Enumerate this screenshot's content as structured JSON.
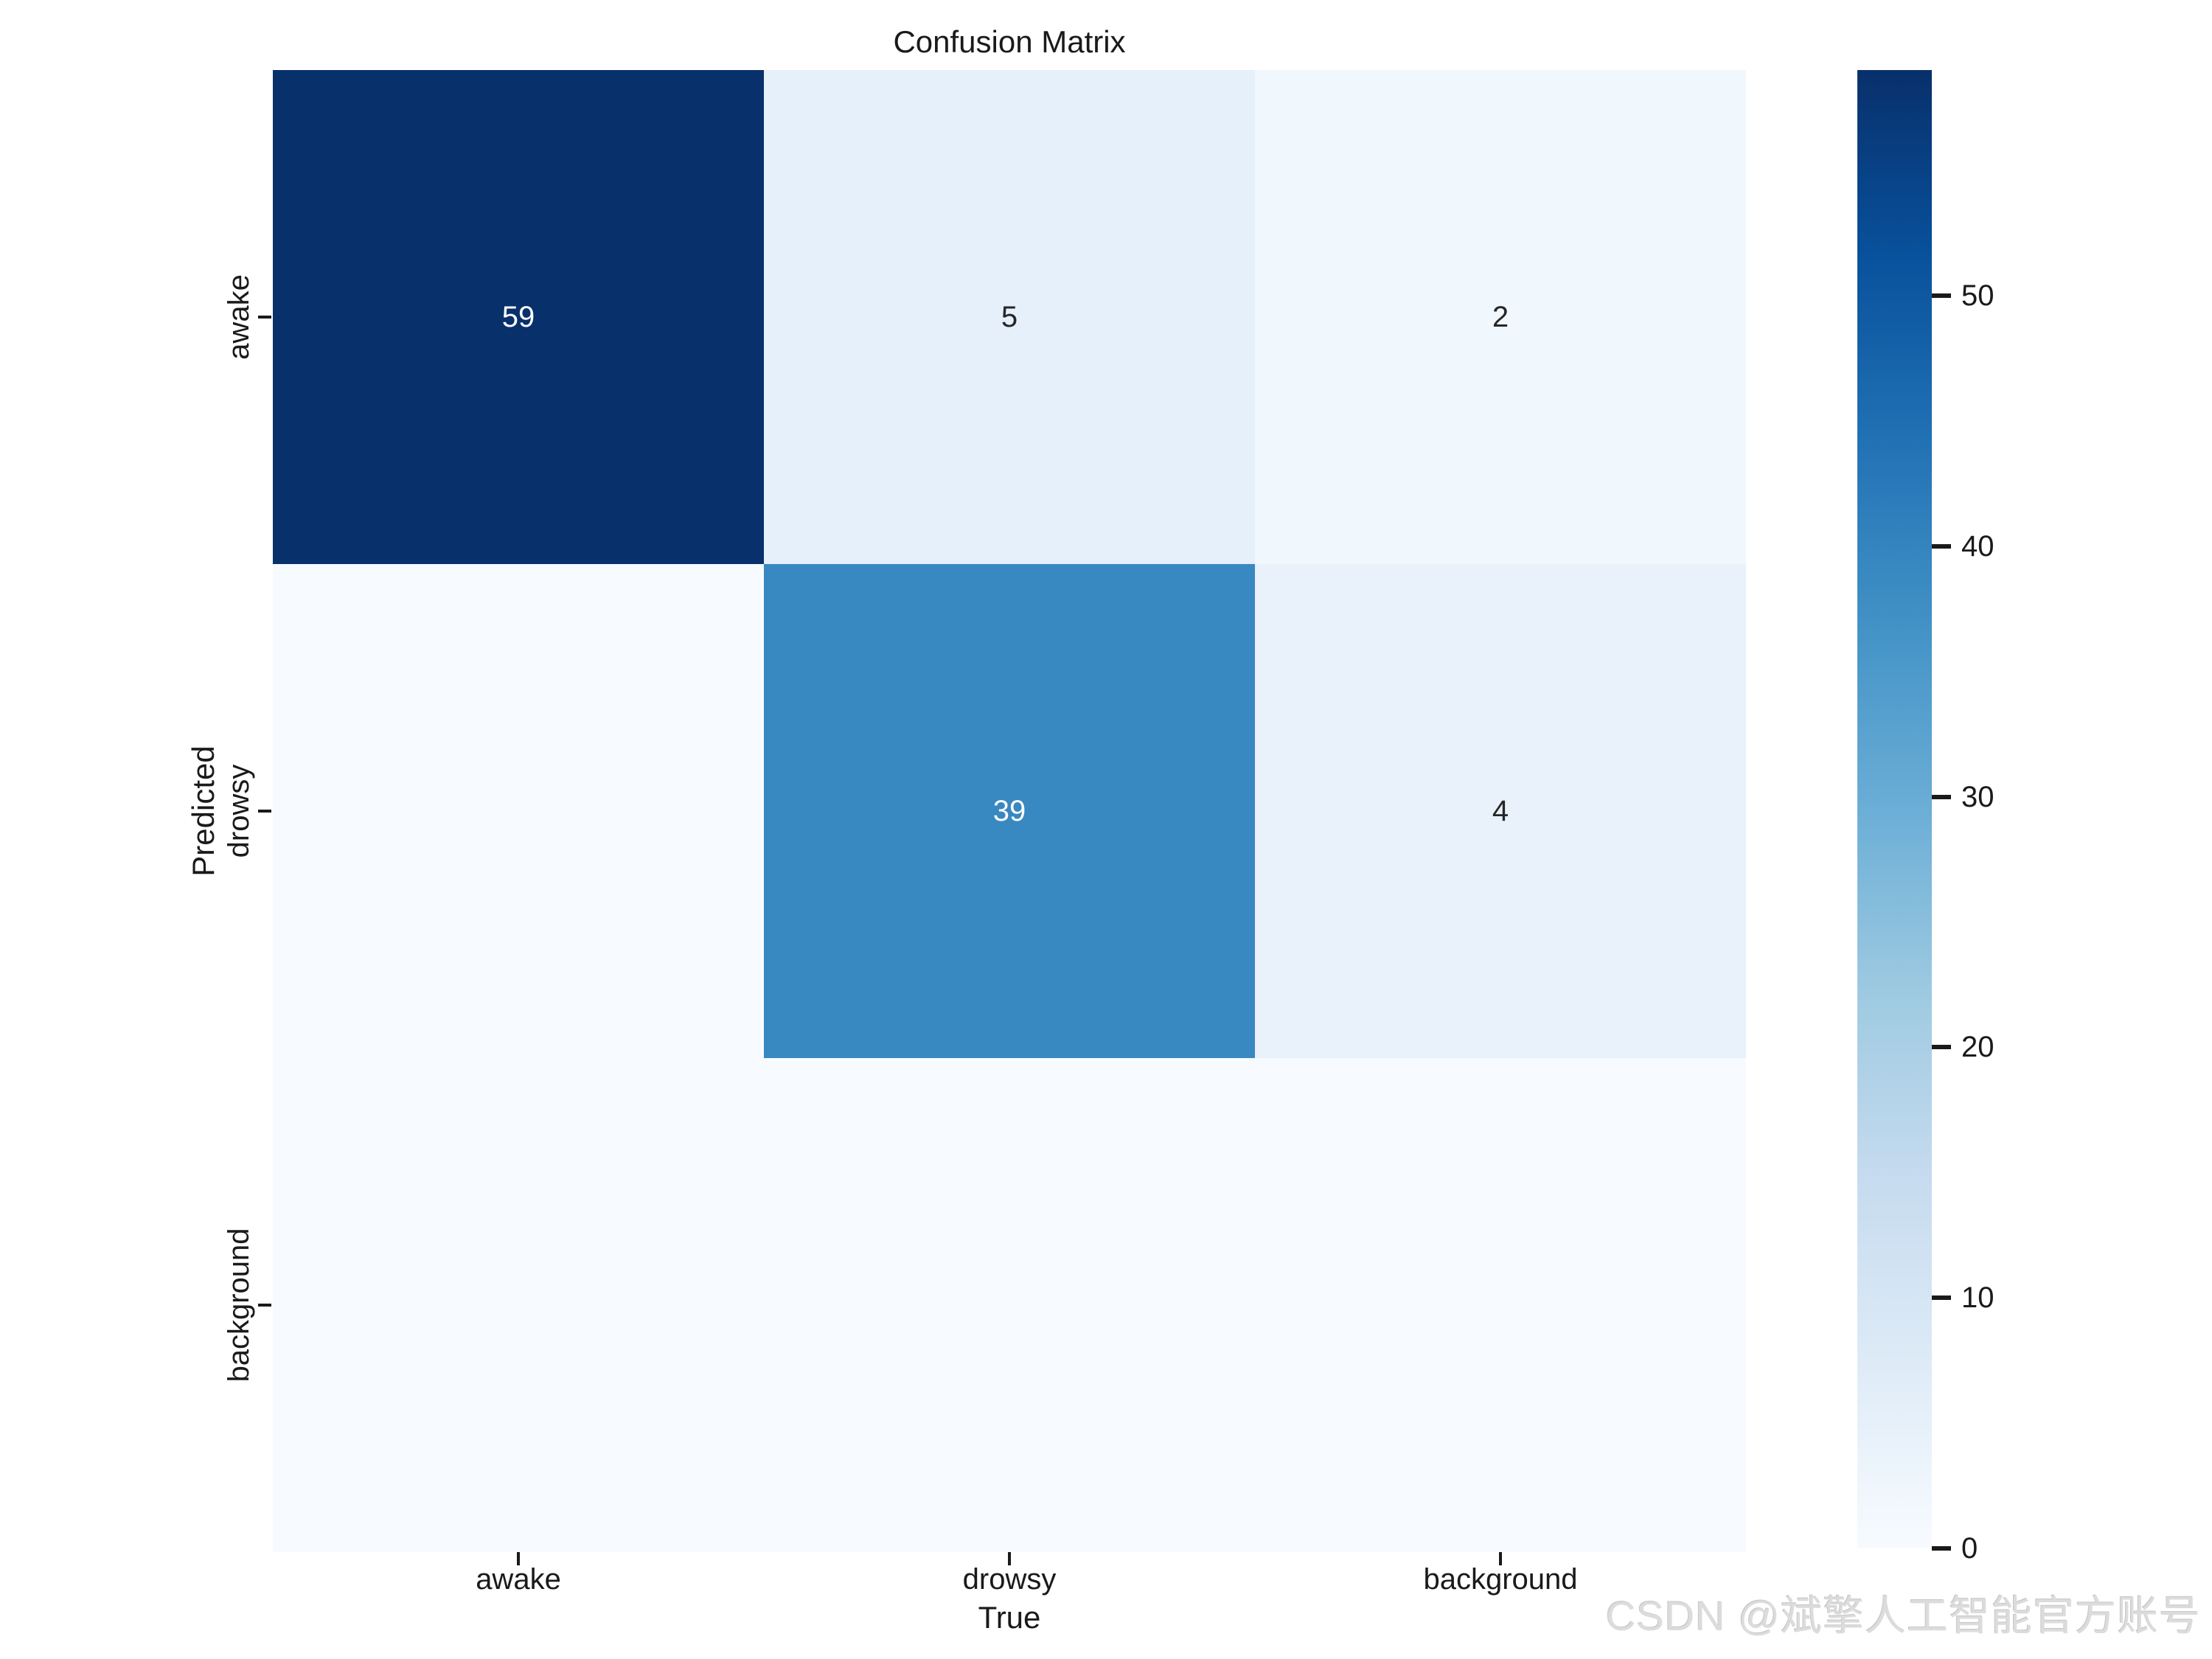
{
  "title": "Confusion Matrix",
  "axes": {
    "x_label": "True",
    "y_label": "Predicted",
    "x_tick_labels": [
      "awake",
      "drowsy",
      "background"
    ],
    "y_tick_labels": [
      "awake",
      "drowsy",
      "background"
    ]
  },
  "colorbar": {
    "tick_values": [
      0,
      10,
      20,
      30,
      40,
      50
    ],
    "vmin": 0,
    "vmax": 59,
    "gradient_bottom_to_top": [
      "#f7fbff",
      "#deebf7",
      "#c6dbef",
      "#9ecae1",
      "#6baed6",
      "#4292c6",
      "#2171b5",
      "#08519c",
      "#08306b"
    ]
  },
  "watermark": "CSDN @斌擎人工智能官方账号",
  "colors": {
    "background": "#ffffff",
    "tick_color": "#1a1a1a",
    "annot_dark_text": "#262626",
    "annot_light_text": "#ffffff"
  },
  "chart_data": {
    "type": "heatmap",
    "title": "Confusion Matrix",
    "xlabel": "True",
    "ylabel": "Predicted",
    "x_categories": [
      "awake",
      "drowsy",
      "background"
    ],
    "y_categories": [
      "awake",
      "drowsy",
      "background"
    ],
    "matrix_rows_predicted_cols_true": [
      [
        59,
        5,
        2
      ],
      [
        0,
        39,
        4
      ],
      [
        0,
        0,
        0
      ]
    ],
    "colormap": "Blues",
    "vmin": 0,
    "vmax": 59,
    "colorbar_ticks": [
      0,
      10,
      20,
      30,
      40,
      50
    ],
    "legend_position": "right",
    "grid": false
  },
  "cells": [
    {
      "row": 0,
      "col": 0,
      "label": "59",
      "bg": "#08306b",
      "fg": "#ffffff"
    },
    {
      "row": 0,
      "col": 1,
      "label": "5",
      "bg": "#e6f0fa",
      "fg": "#262626"
    },
    {
      "row": 0,
      "col": 2,
      "label": "2",
      "bg": "#f0f7fd",
      "fg": "#262626"
    },
    {
      "row": 1,
      "col": 0,
      "label": "",
      "bg": "#f7fbff",
      "fg": "#262626"
    },
    {
      "row": 1,
      "col": 1,
      "label": "39",
      "bg": "#3888c1",
      "fg": "#ffffff"
    },
    {
      "row": 1,
      "col": 2,
      "label": "4",
      "bg": "#e9f2fb",
      "fg": "#262626"
    },
    {
      "row": 2,
      "col": 0,
      "label": "",
      "bg": "#f7fbff",
      "fg": "#262626"
    },
    {
      "row": 2,
      "col": 1,
      "label": "",
      "bg": "#f7fbff",
      "fg": "#262626"
    },
    {
      "row": 2,
      "col": 2,
      "label": "",
      "bg": "#f7fbff",
      "fg": "#262626"
    }
  ]
}
